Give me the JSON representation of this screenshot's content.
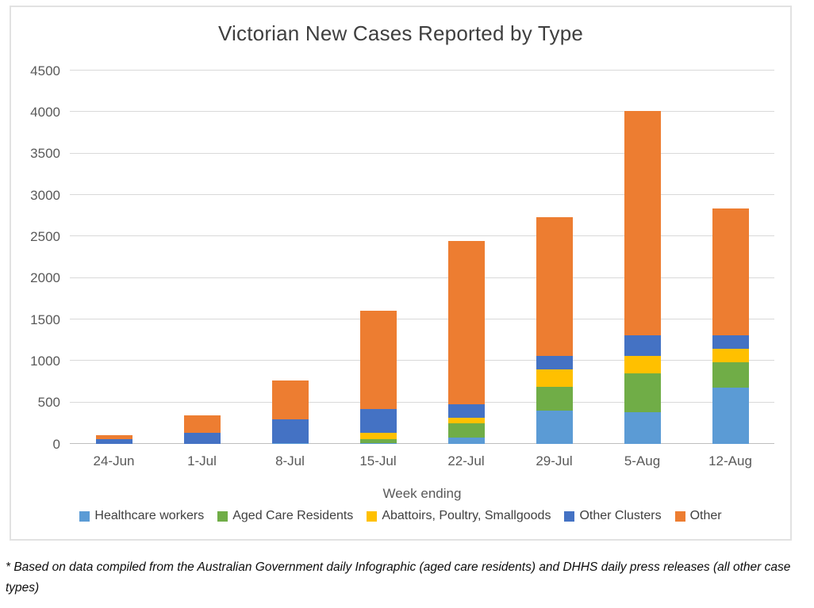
{
  "title": "Victorian New Cases Reported by Type",
  "footnote": "* Based on data compiled from the Australian Government daily Infographic (aged care residents) and DHHS daily press releases (all other case types)",
  "colors": {
    "healthcare_workers": "#5B9BD5",
    "aged_care_residents": "#70AD47",
    "abattoirs_poultry_smallgoods": "#FFC000",
    "other_clusters": "#4472C4",
    "other": "#ED7D31",
    "gridline": "#D9D9D9",
    "axis_line": "#BFBFBF",
    "title_text": "#3F3F3F",
    "axis_text": "#595959"
  },
  "chart_data": {
    "type": "bar",
    "stacked": true,
    "title": "Victorian New Cases Reported by Type",
    "xlabel": "Week ending",
    "ylabel": "",
    "ylim": [
      0,
      4500
    ],
    "ytick_step": 500,
    "yticks": [
      0,
      500,
      1000,
      1500,
      2000,
      2500,
      3000,
      3500,
      4000,
      4500
    ],
    "grid": true,
    "legend_position": "bottom",
    "categories": [
      "24-Jun",
      "1-Jul",
      "8-Jul",
      "15-Jul",
      "22-Jul",
      "29-Jul",
      "5-Aug",
      "12-Aug"
    ],
    "series": [
      {
        "name": "Healthcare workers",
        "color": "#5B9BD5",
        "values": [
          0,
          0,
          10,
          10,
          75,
          400,
          380,
          680
        ]
      },
      {
        "name": "Aged Care Residents",
        "color": "#70AD47",
        "values": [
          0,
          0,
          0,
          50,
          170,
          290,
          470,
          300
        ]
      },
      {
        "name": "Abattoirs, Poultry, Smallgoods",
        "color": "#FFC000",
        "values": [
          0,
          0,
          0,
          70,
          70,
          210,
          210,
          170
        ]
      },
      {
        "name": "Other Clusters",
        "color": "#4472C4",
        "values": [
          55,
          135,
          290,
          290,
          165,
          160,
          250,
          160
        ]
      },
      {
        "name": "Other",
        "color": "#ED7D31",
        "values": [
          55,
          210,
          460,
          1190,
          1970,
          1670,
          2700,
          1530
        ]
      }
    ],
    "totals": [
      110,
      345,
      760,
      1610,
      2450,
      2730,
      4010,
      2840
    ]
  }
}
